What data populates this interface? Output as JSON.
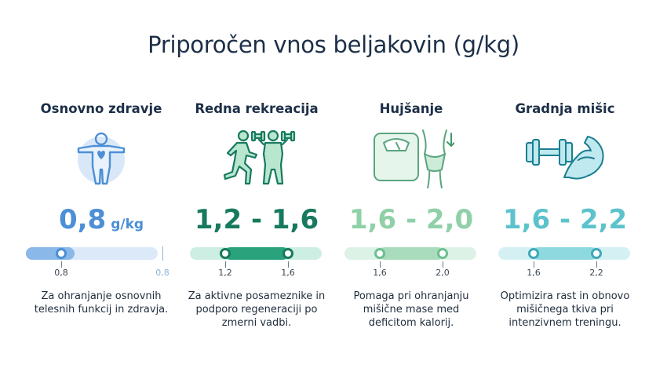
{
  "title": "Priporočen vnos beljakovin (g/kg)",
  "colors": {
    "title": "#1c2f48",
    "basic": "#4c8fd6",
    "recreation": "#177a5e",
    "weightloss": "#8fd0a8",
    "muscle": "#5cc3cc"
  },
  "columns": [
    {
      "heading": "Osnovno zdravje",
      "icon": "person-heart-icon",
      "value": "0,8",
      "unit": "g/kg",
      "range_min": 0.8,
      "range_max": 0.8,
      "tick_min": "0,8",
      "tick_max": "0,8",
      "desc": [
        "Za ohranjanje osnovnih",
        "telesnih funkcij in zdravja."
      ]
    },
    {
      "heading": "Redna rekreacija",
      "icon": "runner-dumbbell-icon",
      "value": "1,2 - 1,6",
      "range_min": 1.2,
      "range_max": 1.6,
      "tick_min": "1,2",
      "tick_max": "1,6",
      "desc": [
        "Za aktivne posameznike in",
        "podporo regeneraciji po",
        "zmerni vadbi."
      ]
    },
    {
      "heading": "Hujšanje",
      "icon": "scale-waist-icon",
      "value": "1,6 - 2,0",
      "range_min": 1.6,
      "range_max": 2.0,
      "tick_min": "1,6",
      "tick_max": "2,0",
      "desc": [
        "Pomaga pri ohranjanju",
        "mišične mase med",
        "deficitom kalorij."
      ]
    },
    {
      "heading": "Gradnja mišic",
      "icon": "dumbbell-bicep-icon",
      "value": "1,6 - 2,2",
      "range_min": 1.6,
      "range_max": 2.2,
      "tick_min": "1,6",
      "tick_max": "2,2",
      "desc": [
        "Optimizira rast in obnovo",
        "mišičnega tkiva pri",
        "intenzivnem treningu."
      ]
    }
  ]
}
